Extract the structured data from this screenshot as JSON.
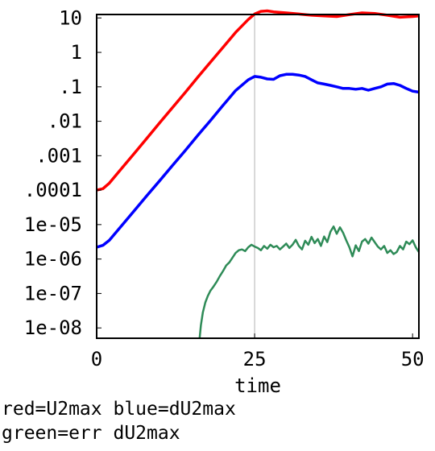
{
  "chart_data": {
    "type": "line",
    "title": "",
    "xlabel": "time",
    "ylabel": "",
    "xlim": [
      0,
      51
    ],
    "ylim_log10": [
      -8.3,
      1.1
    ],
    "y_scale": "log",
    "grid": "vertical line at x=25",
    "x_ticks": [
      {
        "value": 0,
        "label": "0"
      },
      {
        "value": 25,
        "label": "25"
      },
      {
        "value": 50,
        "label": "50"
      }
    ],
    "y_ticks": [
      {
        "value": 10,
        "label": "10"
      },
      {
        "value": 1,
        "label": "1"
      },
      {
        "value": 0.1,
        "label": ".1"
      },
      {
        "value": 0.01,
        "label": ".01"
      },
      {
        "value": 0.001,
        "label": ".001"
      },
      {
        "value": 0.0001,
        "label": ".0001"
      },
      {
        "value": 1e-05,
        "label": "1e-05"
      },
      {
        "value": 1e-06,
        "label": "1e-06"
      },
      {
        "value": 1e-07,
        "label": "1e-07"
      },
      {
        "value": 1e-08,
        "label": "1e-08"
      }
    ],
    "series": [
      {
        "color": "#ff0000",
        "x": [
          0,
          1,
          2,
          4,
          6,
          8,
          10,
          12,
          14,
          16,
          18,
          20,
          22,
          24,
          25,
          26,
          27,
          28,
          30,
          32,
          34,
          36,
          38,
          40,
          42,
          44,
          46,
          48,
          50,
          51
        ],
        "y": [
          0.0001,
          0.00011,
          0.00016,
          0.00044,
          0.0012,
          0.0033,
          0.0091,
          0.025,
          0.068,
          0.19,
          0.52,
          1.4,
          3.8,
          9.0,
          13.0,
          15.5,
          16.0,
          15.0,
          14.0,
          13.0,
          12.0,
          11.5,
          11.0,
          12.5,
          14.0,
          13.5,
          12.0,
          10.5,
          11.0,
          11.5
        ]
      },
      {
        "color": "#0000ff",
        "x": [
          0,
          1,
          2,
          4,
          6,
          8,
          10,
          12,
          14,
          16,
          18,
          20,
          22,
          24,
          25,
          26,
          27,
          28,
          29,
          30,
          31,
          32,
          33,
          34,
          35,
          36,
          37,
          38,
          39,
          40,
          41,
          42,
          43,
          44,
          45,
          46,
          47,
          48,
          49,
          50,
          51
        ],
        "y": [
          2.2e-06,
          2.5e-06,
          3.5e-06,
          9.5e-06,
          2.6e-05,
          7.1e-05,
          0.00019,
          0.00052,
          0.0014,
          0.0039,
          0.0105,
          0.029,
          0.078,
          0.16,
          0.2,
          0.19,
          0.17,
          0.165,
          0.21,
          0.23,
          0.23,
          0.22,
          0.2,
          0.16,
          0.13,
          0.12,
          0.11,
          0.1,
          0.09,
          0.09,
          0.085,
          0.09,
          0.08,
          0.09,
          0.1,
          0.12,
          0.125,
          0.11,
          0.09,
          0.075,
          0.07
        ]
      },
      {
        "color": "#2e8b57",
        "x": [
          16.3,
          16.5,
          16.8,
          17.2,
          17.6,
          18.0,
          18.5,
          19.0,
          19.5,
          20.0,
          20.5,
          21.0,
          21.5,
          22.0,
          22.5,
          23.0,
          23.5,
          24.0,
          24.5,
          25.0,
          25.5,
          26.0,
          26.5,
          27.0,
          27.5,
          28.0,
          28.5,
          29.0,
          29.5,
          30.0,
          30.5,
          31.0,
          31.5,
          32.0,
          32.5,
          33.0,
          33.5,
          34.0,
          34.5,
          35.0,
          35.5,
          36.0,
          36.5,
          37.0,
          37.5,
          38.0,
          38.5,
          39.0,
          39.5,
          40.0,
          40.5,
          41.0,
          41.5,
          42.0,
          42.5,
          43.0,
          43.5,
          44.0,
          44.5,
          45.0,
          45.5,
          46.0,
          46.5,
          47.0,
          47.5,
          48.0,
          48.5,
          49.0,
          49.5,
          50.0,
          50.5,
          51.0
        ],
        "y": [
          5e-09,
          1.2e-08,
          2.8e-08,
          5.5e-08,
          8.5e-08,
          1.2e-07,
          1.6e-07,
          2.2e-07,
          3.2e-07,
          4.5e-07,
          6.5e-07,
          8e-07,
          1.1e-06,
          1.5e-06,
          1.8e-06,
          1.9e-06,
          1.7e-06,
          2.2e-06,
          2.6e-06,
          2.3e-06,
          2.1e-06,
          1.8e-06,
          2.4e-06,
          2e-06,
          2.6e-06,
          2.2e-06,
          2.4e-06,
          1.9e-06,
          2.3e-06,
          2.8e-06,
          2.1e-06,
          2.6e-06,
          3.6e-06,
          2.4e-06,
          1.9e-06,
          3.4e-06,
          2.6e-06,
          4.4e-06,
          2.9e-06,
          3.8e-06,
          2.4e-06,
          4.5e-06,
          3.1e-06,
          6.2e-06,
          8.8e-06,
          5.4e-06,
          8.3e-06,
          5.8e-06,
          3.5e-06,
          2.2e-06,
          1.2e-06,
          2.5e-06,
          1.7e-06,
          3.2e-06,
          3.8e-06,
          2.8e-06,
          4.2e-06,
          3.1e-06,
          2.3e-06,
          1.9e-06,
          2.4e-06,
          1.5e-06,
          1.8e-06,
          1.4e-06,
          1.6e-06,
          2.4e-06,
          1.9e-06,
          3.2e-06,
          2.7e-06,
          3.5e-06,
          2.2e-06,
          1.6e-06
        ]
      }
    ]
  },
  "caption": {
    "line1": "red=U2max blue=dU2max",
    "line2": "green=err dU2max"
  }
}
